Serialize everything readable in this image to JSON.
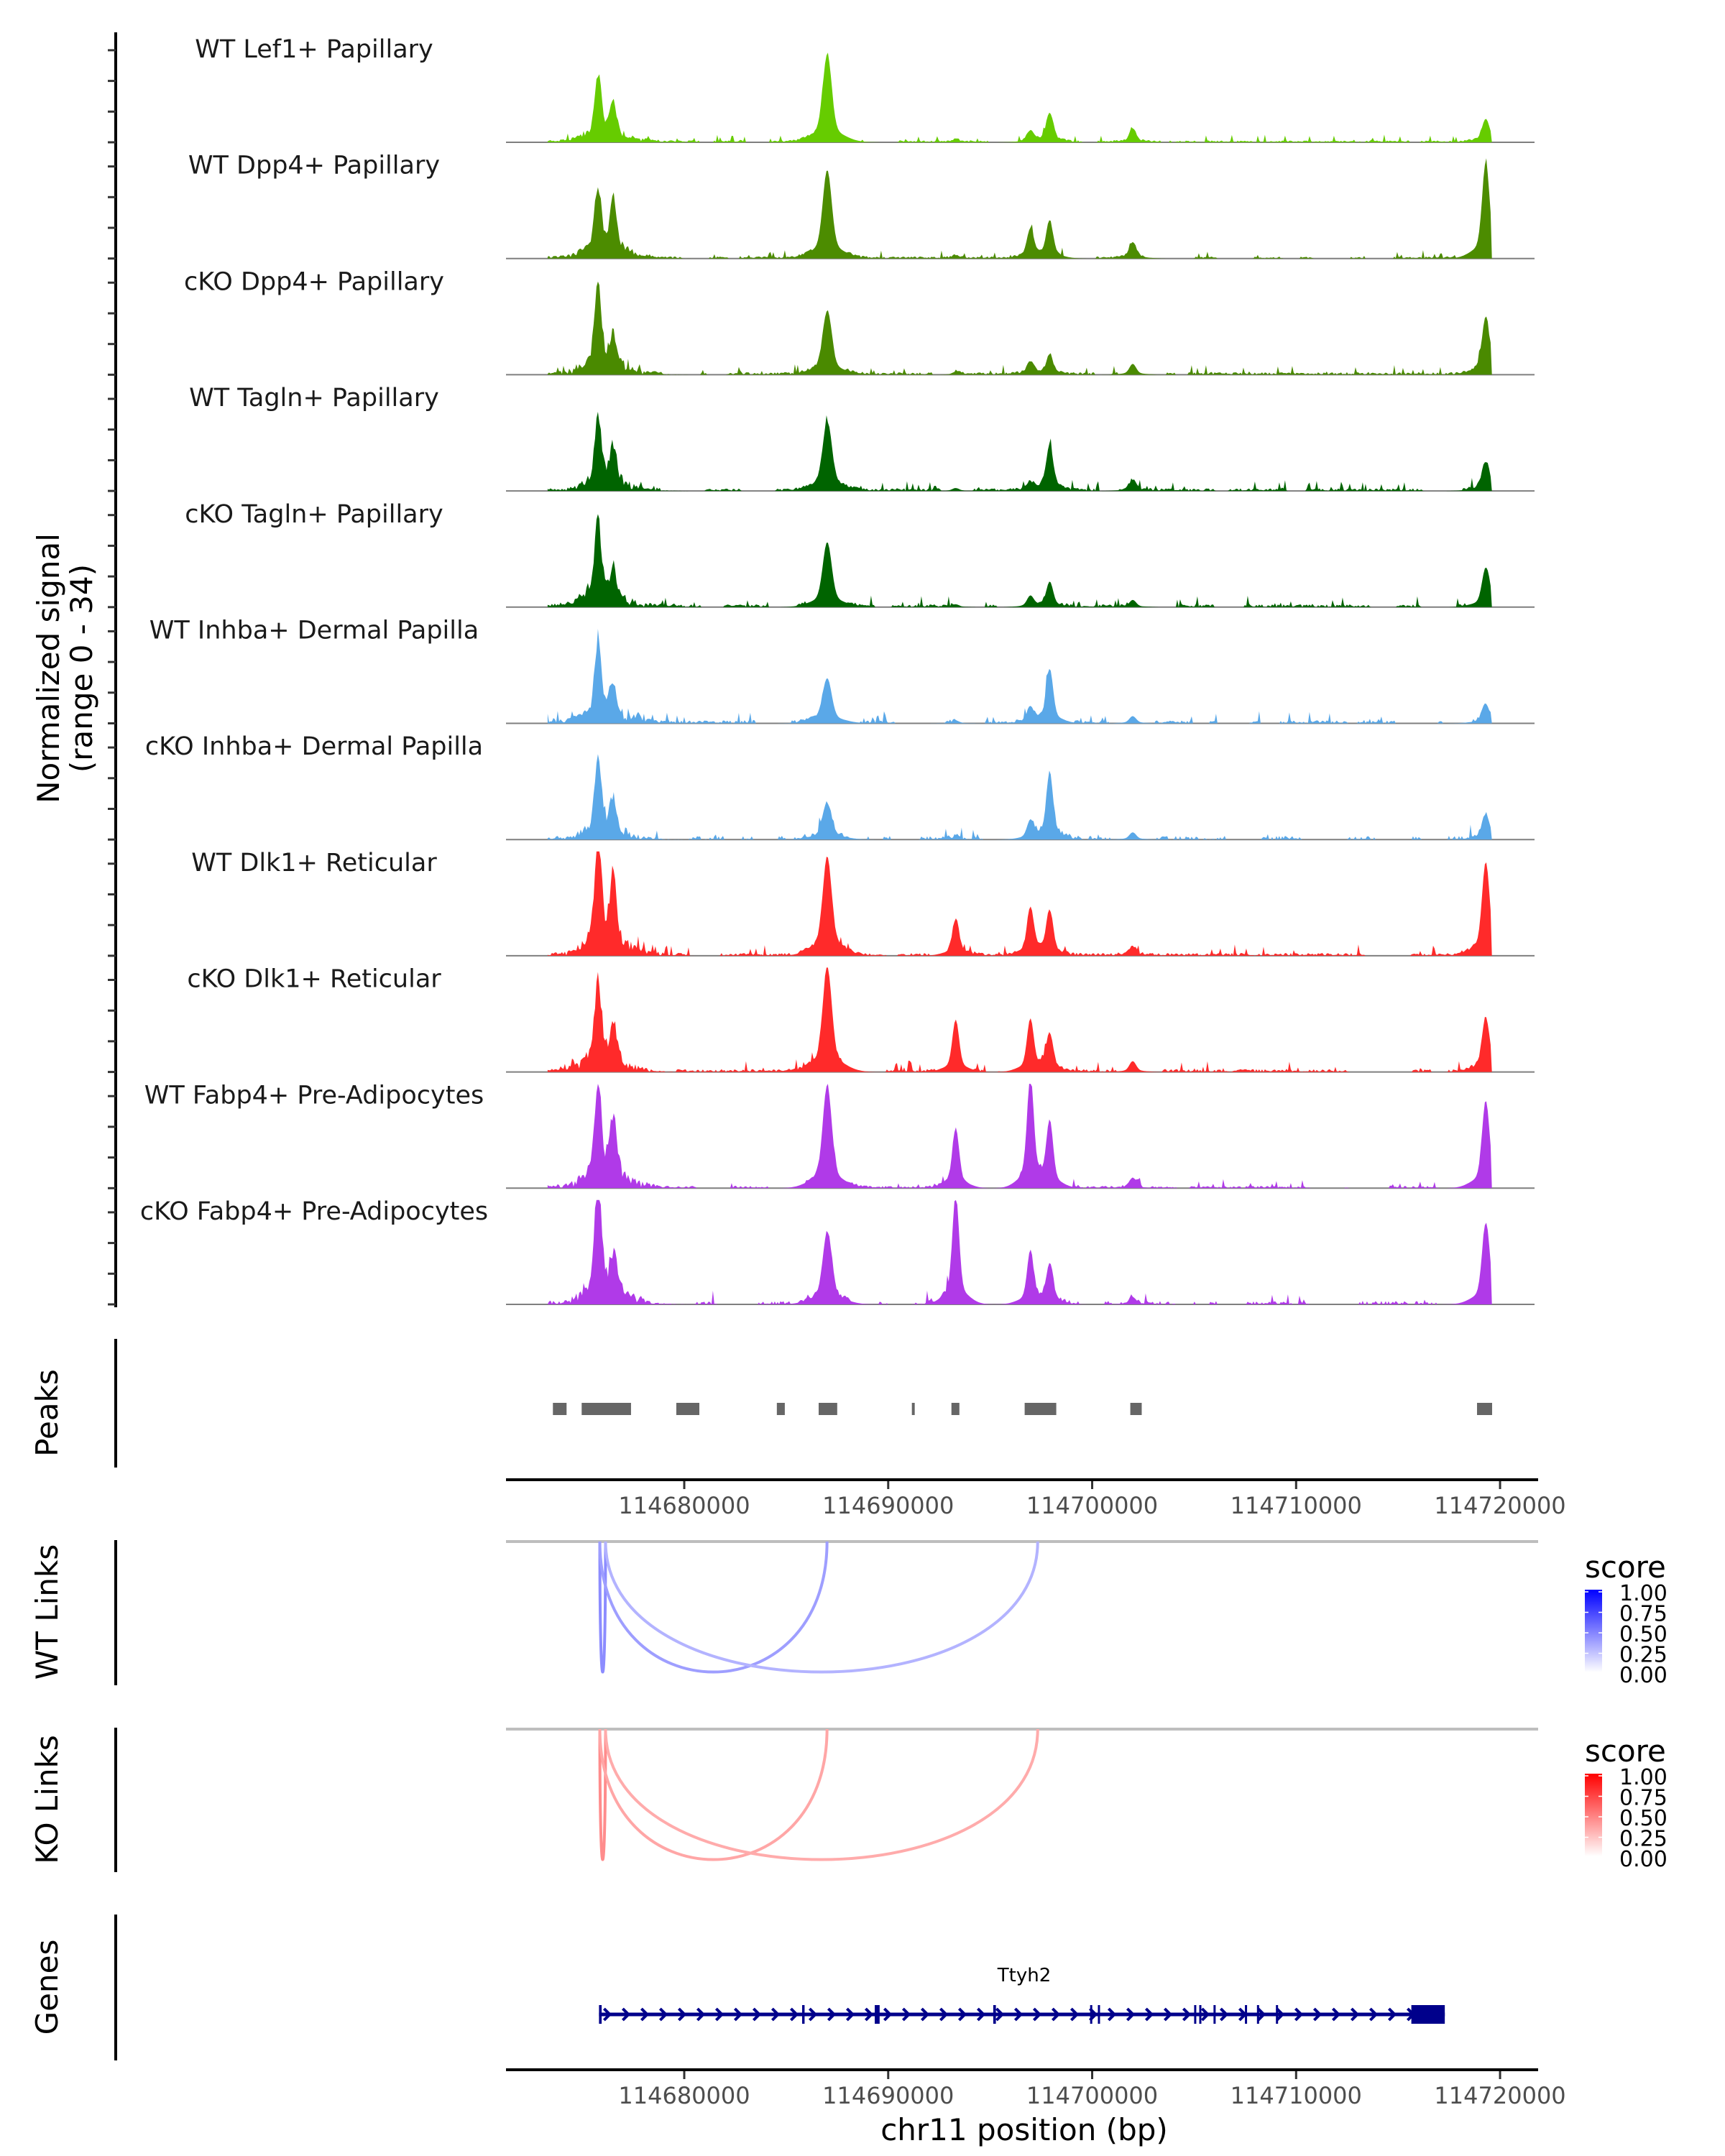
{
  "chart_data": {
    "type": "area",
    "title": "",
    "ylabel": "Normalized signal\n(range 0 - 34)",
    "ylabel_lines": [
      "Normalized signal",
      "(range 0 - 34)"
    ],
    "ylim": [
      0,
      34
    ],
    "xlabel": "chr11 position (bp)",
    "xlim": [
      114671260,
      114721690
    ],
    "x_ticks": [
      114680000,
      114690000,
      114700000,
      114710000,
      114720000
    ],
    "x_tick_labels": [
      "114680000",
      "114690000",
      "114700000",
      "114710000",
      "114720000"
    ],
    "signal_range": [
      114673300,
      114719600
    ],
    "peak_sites": [
      114675770,
      114676520,
      114687010,
      114693310,
      114696970,
      114697920,
      114701990,
      114719300
    ],
    "tracks": [
      {
        "name": "WT Lef1+ Papillary",
        "color": "#66CC00",
        "heights": [
          17.5,
          9,
          24,
          0.8,
          3,
          8,
          3.5,
          6.5
        ],
        "noise": 1.0
      },
      {
        "name": "WT Dpp4+ Papillary",
        "color": "#4C8C00",
        "heights": [
          17,
          14.5,
          24.5,
          0.8,
          8,
          10,
          4.5,
          26
        ],
        "noise": 1.1
      },
      {
        "name": "cKO Dpp4+ Papillary",
        "color": "#4A8A00",
        "heights": [
          23,
          9,
          17.5,
          0.8,
          3.5,
          5,
          3,
          16
        ],
        "noise": 1.3
      },
      {
        "name": "WT Tagln+ Papillary",
        "color": "#006400",
        "heights": [
          18.5,
          10,
          19,
          0.8,
          2,
          12.5,
          3,
          8
        ],
        "noise": 1.4
      },
      {
        "name": "cKO Tagln+ Papillary",
        "color": "#006400",
        "heights": [
          22,
          9,
          18,
          0.8,
          3,
          7,
          2,
          11
        ],
        "noise": 1.5
      },
      {
        "name": "WT Inhba+ Dermal Papilla",
        "color": "#5AA8E8",
        "heights": [
          20.5,
          8.5,
          12.5,
          0.8,
          4,
          15,
          2,
          5
        ],
        "noise": 1.6
      },
      {
        "name": "cKO Inhba+ Dermal Papilla",
        "color": "#5AA8E8",
        "heights": [
          20,
          9,
          10,
          0.8,
          5,
          18,
          2,
          7
        ],
        "noise": 2.0
      },
      {
        "name": "WT Dlk1+ Reticular",
        "color": "#FF2A2A",
        "heights": [
          29,
          18.5,
          27,
          10,
          13,
          12,
          2.5,
          26
        ],
        "noise": 1.5
      },
      {
        "name": "cKO Dlk1+ Reticular",
        "color": "#FF2A2A",
        "heights": [
          23,
          12,
          29,
          14.5,
          14.5,
          10,
          3,
          15
        ],
        "noise": 1.5
      },
      {
        "name": "WT Fabp4+ Pre-Adipocytes",
        "color": "#B03AE8",
        "heights": [
          28,
          16.5,
          28,
          16.5,
          30,
          18,
          2.5,
          24
        ],
        "noise": 1.2
      },
      {
        "name": "cKO Fabp4+ Pre-Adipocytes",
        "color": "#B03AE8",
        "heights": [
          31,
          11,
          20,
          30.5,
          14,
          11,
          2,
          22.5
        ],
        "noise": 1.8
      }
    ],
    "peaks": {
      "label": "Peaks",
      "color": "#666666",
      "regions": [
        [
          114673560,
          114674230
        ],
        [
          114674970,
          114677390
        ],
        [
          114679610,
          114680740
        ],
        [
          114684540,
          114684930
        ],
        [
          114686590,
          114687500
        ],
        [
          114691160,
          114691300
        ],
        [
          114693100,
          114693490
        ],
        [
          114696690,
          114698240
        ],
        [
          114701870,
          114702430
        ],
        [
          114718870,
          114719610
        ]
      ]
    },
    "wt_links": {
      "label": "WT Links",
      "links": [
        {
          "start": 114675860,
          "end": 114676140,
          "score": 0.45
        },
        {
          "start": 114675860,
          "end": 114687000,
          "score": 0.38
        },
        {
          "start": 114676140,
          "end": 114697330,
          "score": 0.3
        }
      ],
      "legend": {
        "title": "score",
        "ticks": [
          "1.00",
          "0.75",
          "0.50",
          "0.25",
          "0.00"
        ],
        "low": "#FFFFFF",
        "high": "#0000FF"
      }
    },
    "ko_links": {
      "label": "KO Links",
      "links": [
        {
          "start": 114675860,
          "end": 114676140,
          "score": 0.45
        },
        {
          "start": 114675860,
          "end": 114687000,
          "score": 0.35
        },
        {
          "start": 114676140,
          "end": 114697330,
          "score": 0.33
        }
      ],
      "legend": {
        "title": "score",
        "ticks": [
          "1.00",
          "0.75",
          "0.50",
          "0.25",
          "0.00"
        ],
        "low": "#FFFFFF",
        "high": "#FF0000"
      }
    },
    "genes": {
      "label": "Genes",
      "color": "#00008B",
      "gene_name": "Ttyh2",
      "strand": "+",
      "start": 114675820,
      "end": 114717290,
      "exons": [
        [
          114675820,
          114675950
        ],
        [
          114685780,
          114685900
        ],
        [
          114689340,
          114689580
        ],
        [
          114695150,
          114695280
        ],
        [
          114699900,
          114699960
        ],
        [
          114700280,
          114700340
        ],
        [
          114705000,
          114705060
        ],
        [
          114705250,
          114705320
        ],
        [
          114705950,
          114706020
        ],
        [
          114707490,
          114707560
        ],
        [
          114708080,
          114708150
        ],
        [
          114709010,
          114709080
        ],
        [
          114715650,
          114717290
        ]
      ]
    }
  }
}
